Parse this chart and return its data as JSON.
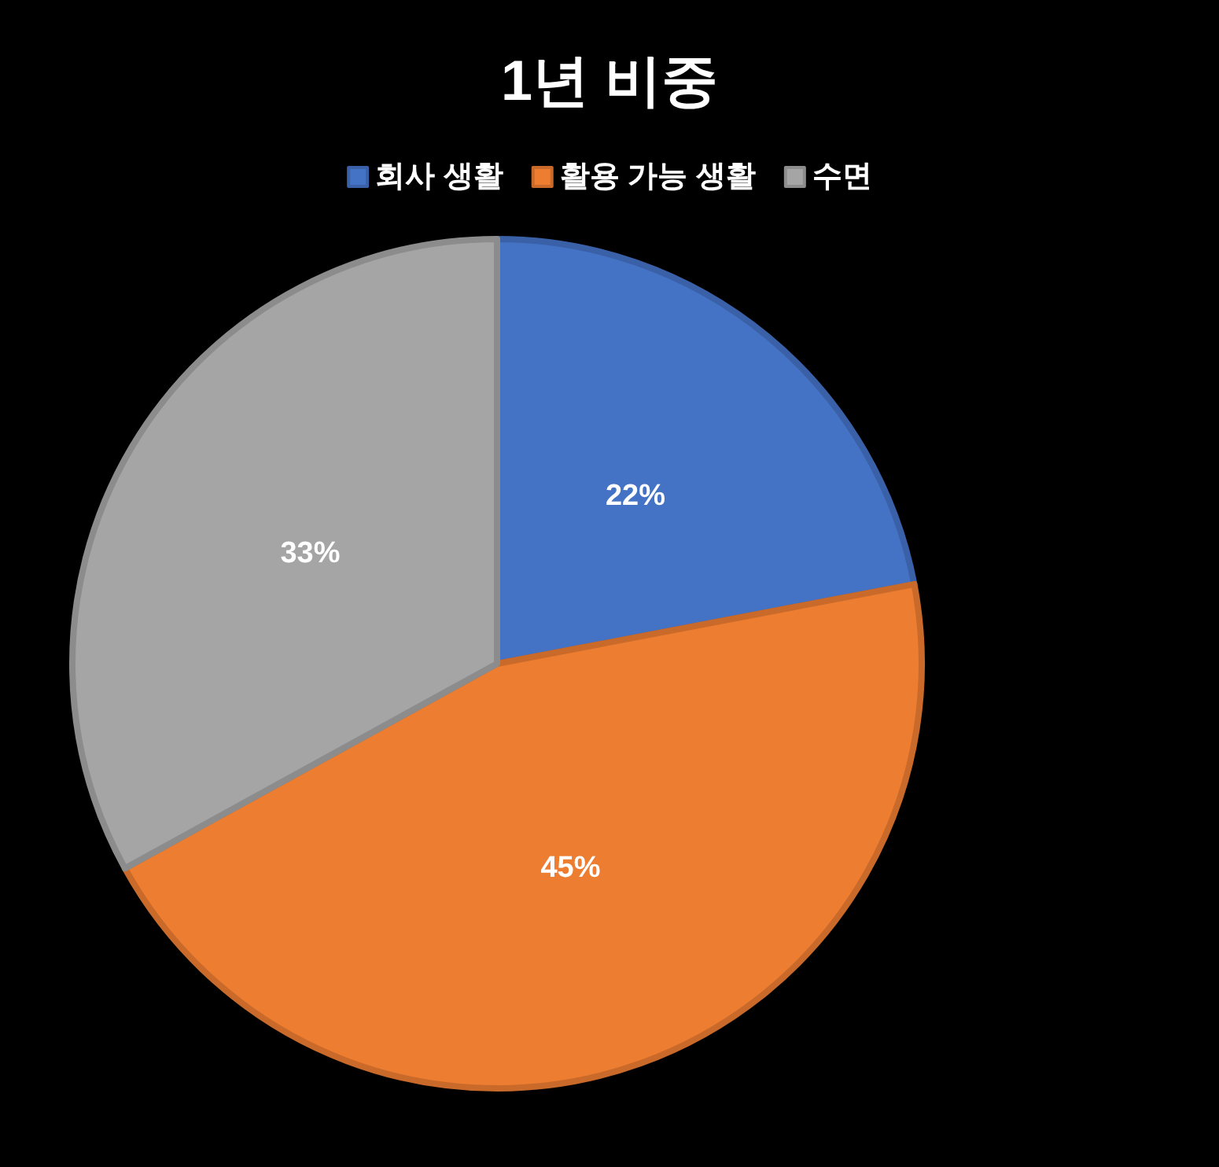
{
  "chart_data": {
    "type": "pie",
    "title": "1년 비중",
    "categories": [
      "회사 생활",
      "활용 가능 생활",
      "수면"
    ],
    "values": [
      22,
      45,
      33
    ],
    "colors": [
      "#4472c4",
      "#ed7d31",
      "#a5a5a5"
    ],
    "value_labels": [
      "22%",
      "45%",
      "33%"
    ],
    "legend": "top"
  }
}
